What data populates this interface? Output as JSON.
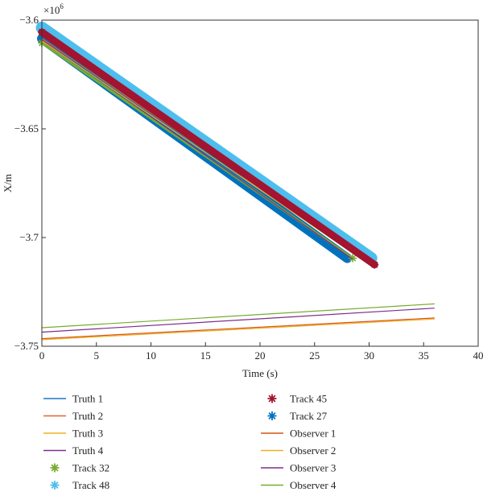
{
  "chart_data": {
    "type": "line",
    "title": "",
    "xlabel": "Time (s)",
    "ylabel": "X/m",
    "y_exponent_label": "×10",
    "y_exponent_power": "6",
    "xlim": [
      0,
      40
    ],
    "ylim": [
      -3.75,
      -3.6
    ],
    "x_ticks": [
      0,
      5,
      10,
      15,
      20,
      25,
      30,
      35,
      40
    ],
    "x_tick_labels": [
      "0",
      "5",
      "10",
      "15",
      "20",
      "25",
      "30",
      "35",
      "40"
    ],
    "y_ticks": [
      -3.75,
      -3.7,
      -3.65,
      -3.6
    ],
    "y_tick_labels": [
      "−3.75",
      "−3.7",
      "−3.65",
      "−3.6"
    ],
    "grid": false,
    "legend_position": "below",
    "series": [
      {
        "name": "Truth 1",
        "color": "#1f77c4",
        "style": "line",
        "x": [
          0,
          30.5
        ],
        "y": [
          -3.6075,
          -3.712
        ]
      },
      {
        "name": "Truth 2",
        "color": "#e0642a",
        "style": "line",
        "x": [
          0,
          30.5
        ],
        "y": [
          -3.6085,
          -3.713
        ]
      },
      {
        "name": "Truth 3",
        "color": "#eeb120",
        "style": "line",
        "x": [
          0,
          30.5
        ],
        "y": [
          -3.6095,
          -3.714
        ]
      },
      {
        "name": "Truth 4",
        "color": "#7e2f8e",
        "style": "line",
        "x": [
          0,
          28.5
        ],
        "y": [
          -3.609,
          -3.71
        ]
      },
      {
        "name": "Track 32",
        "color": "#77ac30",
        "style": "marker",
        "x": [
          0,
          28.5
        ],
        "y": [
          -3.6105,
          -3.7095
        ]
      },
      {
        "name": "Track 48",
        "color": "#4dbeee",
        "style": "marker",
        "x": [
          0,
          30.2
        ],
        "y": [
          -3.6035,
          -3.7095
        ]
      },
      {
        "name": "Track 45",
        "color": "#a2142f",
        "style": "marker",
        "x": [
          0,
          30.5
        ],
        "y": [
          -3.6055,
          -3.7125
        ]
      },
      {
        "name": "Track 27",
        "color": "#0072bd",
        "style": "marker",
        "x": [
          0,
          28.0
        ],
        "y": [
          -3.6085,
          -3.7095
        ]
      },
      {
        "name": "Observer 1",
        "color": "#d95319",
        "style": "line",
        "x": [
          0,
          36
        ],
        "y": [
          -3.7465,
          -3.737
        ]
      },
      {
        "name": "Observer 2",
        "color": "#edb120",
        "style": "line",
        "x": [
          0,
          36
        ],
        "y": [
          -3.747,
          -3.7375
        ]
      },
      {
        "name": "Observer 3",
        "color": "#7e2f8e",
        "style": "line",
        "x": [
          0,
          36
        ],
        "y": [
          -3.7435,
          -3.7325
        ]
      },
      {
        "name": "Observer 4",
        "color": "#77ac30",
        "style": "line",
        "x": [
          0,
          36
        ],
        "y": [
          -3.7415,
          -3.7305
        ]
      }
    ]
  }
}
